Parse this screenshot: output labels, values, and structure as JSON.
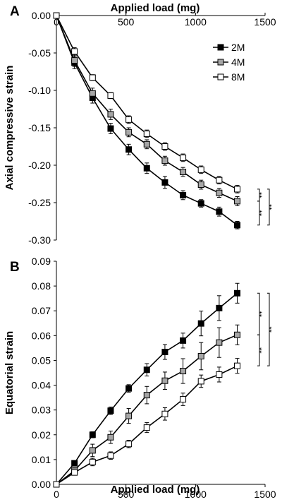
{
  "chart_data": [
    {
      "panel": "A",
      "type": "line",
      "xlabel": "Applied load (mg)",
      "xlabel_position": "top",
      "ylabel": "Axial compressive strain",
      "xlim": [
        0,
        1500
      ],
      "ylim": [
        -0.3,
        0.0
      ],
      "xticks": [
        "0",
        "500",
        "1000",
        "1500"
      ],
      "yticks": [
        "0.00",
        "-0.05",
        "-0.10",
        "-0.15",
        "-0.20",
        "-0.25",
        "-0.30"
      ],
      "x": [
        0,
        130,
        260,
        390,
        520,
        650,
        780,
        910,
        1040,
        1170,
        1300
      ],
      "legend": {
        "position": "top-right"
      },
      "series": [
        {
          "name": "2M",
          "marker": "filled",
          "color": "#000000",
          "values": [
            0,
            -0.063,
            -0.11,
            -0.151,
            -0.179,
            -0.204,
            -0.223,
            -0.24,
            -0.251,
            -0.262,
            -0.28
          ],
          "errors": [
            0,
            0.008,
            0.007,
            0.007,
            0.007,
            0.007,
            0.008,
            0.006,
            0.005,
            0.006,
            0.005
          ]
        },
        {
          "name": "4M",
          "marker": "gray",
          "color": "#a6a6a6",
          "values": [
            0,
            -0.06,
            -0.104,
            -0.132,
            -0.156,
            -0.172,
            -0.194,
            -0.209,
            -0.226,
            -0.237,
            -0.248
          ],
          "errors": [
            0,
            0.008,
            0.007,
            0.007,
            0.006,
            0.006,
            0.006,
            0.006,
            0.006,
            0.006,
            0.006
          ]
        },
        {
          "name": "8M",
          "marker": "open",
          "color": "#ffffff",
          "values": [
            0,
            -0.048,
            -0.083,
            -0.107,
            -0.139,
            -0.158,
            -0.175,
            -0.19,
            -0.206,
            -0.22,
            -0.232
          ],
          "errors": [
            0,
            0.005,
            0.004,
            0.004,
            0.005,
            0.005,
            0.005,
            0.005,
            0.005,
            0.005,
            0.005
          ]
        }
      ],
      "significance": [
        {
          "from": "2M",
          "to": "4M",
          "label": "**"
        },
        {
          "from": "4M",
          "to": "8M",
          "label": "**"
        },
        {
          "from": "2M",
          "to": "8M",
          "label": "**"
        }
      ]
    },
    {
      "panel": "B",
      "type": "line",
      "xlabel": "Applied load (mg)",
      "xlabel_position": "bottom",
      "ylabel": "Equatorial strain",
      "xlim": [
        0,
        1500
      ],
      "ylim": [
        0.0,
        0.09
      ],
      "xticks": [
        "0",
        "500",
        "1000",
        "1500"
      ],
      "yticks": [
        "0.00",
        "0.01",
        "0.02",
        "0.03",
        "0.04",
        "0.05",
        "0.06",
        "0.07",
        "0.08",
        "0.09"
      ],
      "x": [
        0,
        130,
        260,
        390,
        520,
        650,
        780,
        910,
        1040,
        1170,
        1300
      ],
      "series": [
        {
          "name": "2M",
          "marker": "filled",
          "color": "#000000",
          "values": [
            0,
            0.0085,
            0.02,
            0.0297,
            0.0387,
            0.0462,
            0.0534,
            0.058,
            0.0649,
            0.0711,
            0.0771
          ],
          "errors": [
            0,
            0.001,
            0.0012,
            0.0015,
            0.0015,
            0.0025,
            0.003,
            0.003,
            0.005,
            0.005,
            0.004
          ]
        },
        {
          "name": "4M",
          "marker": "gray",
          "color": "#a6a6a6",
          "values": [
            0,
            0.0055,
            0.0137,
            0.019,
            0.0276,
            0.036,
            0.0418,
            0.0457,
            0.0517,
            0.0572,
            0.0603
          ],
          "errors": [
            0,
            0.0012,
            0.0025,
            0.0025,
            0.003,
            0.0035,
            0.0035,
            0.005,
            0.0055,
            0.006,
            0.004
          ]
        },
        {
          "name": "8M",
          "marker": "open",
          "color": "#ffffff",
          "values": [
            0,
            0.0048,
            0.009,
            0.0116,
            0.0163,
            0.0229,
            0.0284,
            0.0343,
            0.0416,
            0.0443,
            0.0478
          ],
          "errors": [
            0,
            0.001,
            0.0015,
            0.0015,
            0.0015,
            0.002,
            0.0025,
            0.0025,
            0.0025,
            0.003,
            0.003
          ]
        }
      ],
      "significance": [
        {
          "from": "2M",
          "to": "4M",
          "label": "**"
        },
        {
          "from": "4M",
          "to": "8M",
          "label": "**"
        },
        {
          "from": "2M",
          "to": "8M",
          "label": "**"
        }
      ]
    }
  ]
}
